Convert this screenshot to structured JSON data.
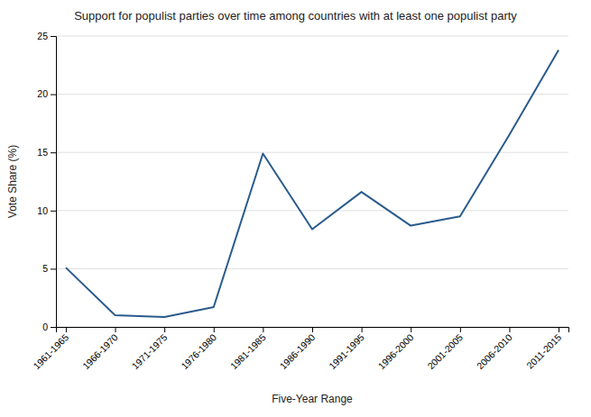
{
  "chart_data": {
    "type": "line",
    "title": "Support for populist parties over time among countries with at least one populist party",
    "xlabel": "Five-Year Range",
    "ylabel": "Vote Share (%)",
    "categories": [
      "1961-1965",
      "1966-1970",
      "1971-1975",
      "1976-1980",
      "1981-1985",
      "1986-1990",
      "1991-1995",
      "1996-2000",
      "2001-2005",
      "2006-2010",
      "2011-2015"
    ],
    "values": [
      5.1,
      1.0,
      0.85,
      1.7,
      14.9,
      8.4,
      11.6,
      8.7,
      9.5,
      16.5,
      23.8
    ],
    "color": "#2a5b8c",
    "ylim": [
      0,
      25
    ],
    "yticks": [
      0,
      5,
      10,
      15,
      20,
      25
    ],
    "grid": true
  }
}
